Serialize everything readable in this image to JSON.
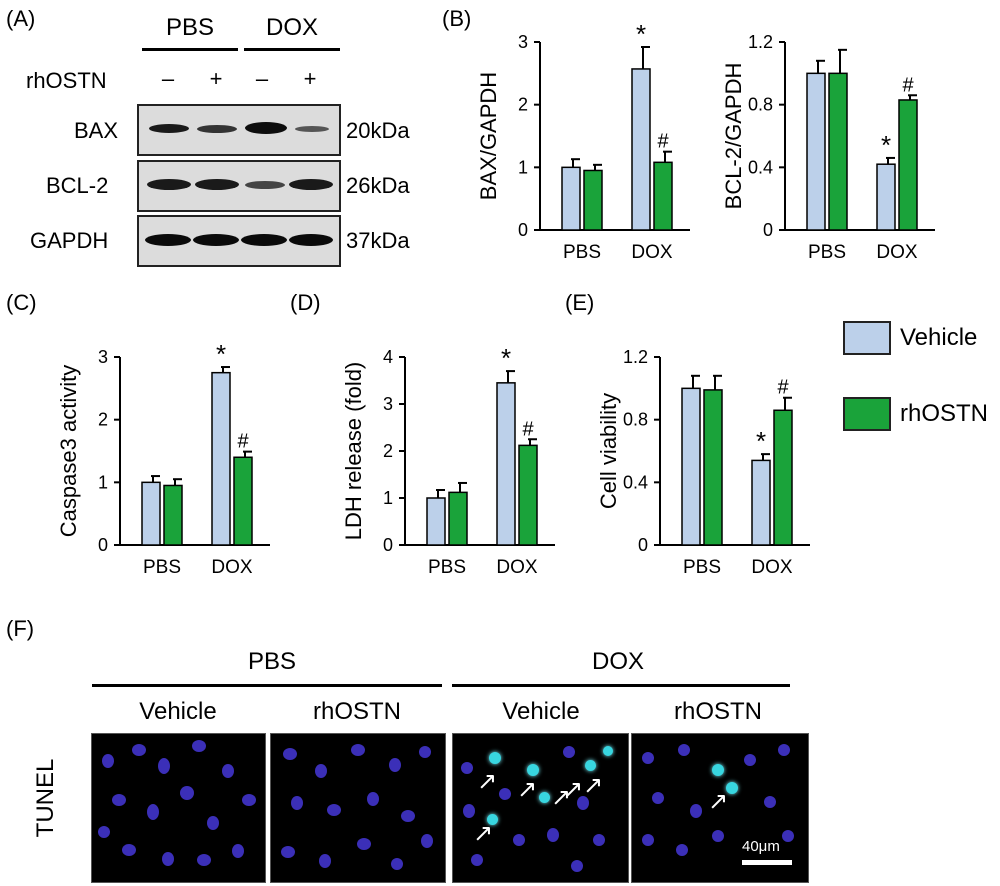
{
  "colors": {
    "vehicle": "#bcd0ea",
    "rhostn": "#1aa33a",
    "axis": "#000000"
  },
  "panel_A": {
    "letter": "(A)",
    "groups": [
      "PBS",
      "DOX"
    ],
    "treatment_label": "rhOSTN",
    "treatment_signs": [
      "–",
      "+",
      "–",
      "+"
    ],
    "rows": [
      {
        "name": "BAX",
        "size": "20kDa"
      },
      {
        "name": "BCL-2",
        "size": "26kDa"
      },
      {
        "name": "GAPDH",
        "size": "37kDa"
      }
    ]
  },
  "panel_B": {
    "letter": "(B)"
  },
  "panel_C": {
    "letter": "(C)"
  },
  "panel_D": {
    "letter": "(D)"
  },
  "panel_E": {
    "letter": "(E)"
  },
  "legend": {
    "vehicle": "Vehicle",
    "rhostn": "rhOSTN"
  },
  "chart_data": [
    {
      "id": "B1",
      "type": "bar",
      "ylabel": "BAX/GAPDH",
      "categories": [
        "PBS",
        "DOX"
      ],
      "ylim": [
        0,
        3
      ],
      "yticks": [
        "0",
        "1",
        "2",
        "3"
      ],
      "series": [
        {
          "name": "Vehicle",
          "values": [
            1.0,
            2.57
          ],
          "errors": [
            0.13,
            0.35
          ],
          "marks": [
            "",
            "*"
          ]
        },
        {
          "name": "rhOSTN",
          "values": [
            0.95,
            1.08
          ],
          "errors": [
            0.09,
            0.17
          ],
          "marks": [
            "",
            "#"
          ]
        }
      ]
    },
    {
      "id": "B2",
      "type": "bar",
      "ylabel": "BCL-2/GAPDH",
      "categories": [
        "PBS",
        "DOX"
      ],
      "ylim": [
        0,
        1.2
      ],
      "yticks": [
        "0",
        "0.4",
        "0.8",
        "1.2"
      ],
      "series": [
        {
          "name": "Vehicle",
          "values": [
            1.0,
            0.42
          ],
          "errors": [
            0.08,
            0.04
          ],
          "marks": [
            "",
            "*"
          ]
        },
        {
          "name": "rhOSTN",
          "values": [
            1.0,
            0.83
          ],
          "errors": [
            0.15,
            0.03
          ],
          "marks": [
            "",
            "#"
          ]
        }
      ]
    },
    {
      "id": "C",
      "type": "bar",
      "ylabel": "Caspase3 activity",
      "categories": [
        "PBS",
        "DOX"
      ],
      "ylim": [
        0,
        3
      ],
      "yticks": [
        "0",
        "1",
        "2",
        "3"
      ],
      "series": [
        {
          "name": "Vehicle",
          "values": [
            1.0,
            2.75
          ],
          "errors": [
            0.1,
            0.09
          ],
          "marks": [
            "",
            "*"
          ]
        },
        {
          "name": "rhOSTN",
          "values": [
            0.95,
            1.4
          ],
          "errors": [
            0.1,
            0.09
          ],
          "marks": [
            "",
            "#"
          ]
        }
      ]
    },
    {
      "id": "D",
      "type": "bar",
      "ylabel": "LDH release (fold)",
      "categories": [
        "PBS",
        "DOX"
      ],
      "ylim": [
        0,
        4
      ],
      "yticks": [
        "0",
        "1",
        "2",
        "3",
        "4"
      ],
      "series": [
        {
          "name": "Vehicle",
          "values": [
            1.0,
            3.45
          ],
          "errors": [
            0.17,
            0.25
          ],
          "marks": [
            "",
            "*"
          ]
        },
        {
          "name": "rhOSTN",
          "values": [
            1.12,
            2.12
          ],
          "errors": [
            0.2,
            0.13
          ],
          "marks": [
            "",
            "#"
          ]
        }
      ]
    },
    {
      "id": "E",
      "type": "bar",
      "ylabel": "Cell viability",
      "categories": [
        "PBS",
        "DOX"
      ],
      "ylim": [
        0,
        1.2
      ],
      "yticks": [
        "0",
        "0.4",
        "0.8",
        "1.2"
      ],
      "series": [
        {
          "name": "Vehicle",
          "values": [
            1.0,
            0.54
          ],
          "errors": [
            0.08,
            0.04
          ],
          "marks": [
            "",
            "*"
          ]
        },
        {
          "name": "rhOSTN",
          "values": [
            0.99,
            0.86
          ],
          "errors": [
            0.09,
            0.08
          ],
          "marks": [
            "",
            "#"
          ]
        }
      ]
    }
  ],
  "panel_F": {
    "letter": "(F)",
    "groups": [
      "PBS",
      "DOX"
    ],
    "columns": [
      "Vehicle",
      "rhOSTN",
      "Vehicle",
      "rhOSTN"
    ],
    "row_label": "TUNEL",
    "scale_bar": "40μm"
  }
}
